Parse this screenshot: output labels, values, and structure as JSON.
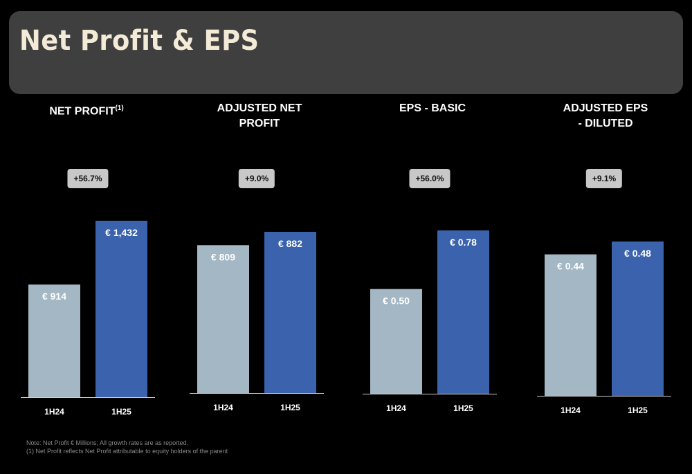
{
  "title": "Net Profit & EPS",
  "colors": {
    "previous": "#a3b8c4",
    "current": "#3a62ad",
    "growth_badge": "#c8c8c8"
  },
  "chart_data": [
    {
      "type": "bar",
      "title": "NET PROFIT",
      "title_superscript": "(1)",
      "categories": [
        "1H24",
        "1H25"
      ],
      "values": [
        914,
        1432
      ],
      "value_labels": [
        "€ 914",
        "€ 1,432"
      ],
      "growth": "+56.7%"
    },
    {
      "type": "bar",
      "title": "ADJUSTED NET PROFIT",
      "categories": [
        "1H24",
        "1H25"
      ],
      "values": [
        809,
        882
      ],
      "value_labels": [
        "€ 809",
        "€ 882"
      ],
      "growth": "+9.0%"
    },
    {
      "type": "bar",
      "title": "EPS - BASIC",
      "categories": [
        "1H24",
        "1H25"
      ],
      "values": [
        0.5,
        0.78
      ],
      "value_labels": [
        "€ 0.50",
        "€ 0.78"
      ],
      "growth": "+56.0%"
    },
    {
      "type": "bar",
      "title": "ADJUSTED EPS - DILUTED",
      "categories": [
        "1H24",
        "1H25"
      ],
      "values": [
        0.44,
        0.48
      ],
      "value_labels": [
        "€ 0.44",
        "€ 0.48"
      ],
      "growth": "+9.1%"
    }
  ],
  "notes": [
    "Note: Net Profit € Millions; All growth rates are as reported.",
    "(1) Net Profit reflects Net Profit attributable to equity holders of the parent"
  ]
}
